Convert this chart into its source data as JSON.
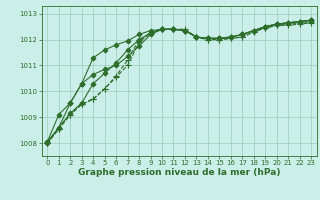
{
  "title": "Graphe pression niveau de la mer (hPa)",
  "bg_color": "#cceee8",
  "grid_color": "#99ccbb",
  "line_color": "#2d6e2d",
  "xlim": [
    -0.5,
    23.5
  ],
  "ylim": [
    1007.5,
    1013.3
  ],
  "yticks": [
    1008,
    1009,
    1010,
    1011,
    1012,
    1013
  ],
  "xticks": [
    0,
    1,
    2,
    3,
    4,
    5,
    6,
    7,
    8,
    9,
    10,
    11,
    12,
    13,
    14,
    15,
    16,
    17,
    18,
    19,
    20,
    21,
    22,
    23
  ],
  "series": [
    {
      "y": [
        1008.0,
        1008.55,
        1009.1,
        1009.5,
        1009.7,
        1010.1,
        1010.55,
        1011.0,
        1011.9,
        1012.25,
        1012.4,
        1012.4,
        1012.4,
        1012.1,
        1012.0,
        1012.0,
        1012.05,
        1012.1,
        1012.3,
        1012.45,
        1012.55,
        1012.55,
        1012.6,
        1012.65
      ],
      "linestyle": "--",
      "marker": "+",
      "markersize": 4,
      "linewidth": 0.8
    },
    {
      "y": [
        1008.0,
        1008.55,
        1009.1,
        1009.5,
        1009.7,
        1010.1,
        1010.6,
        1011.2,
        1012.0,
        1012.25,
        1012.4,
        1012.4,
        1012.35,
        1012.1,
        1012.0,
        1012.0,
        1012.05,
        1012.1,
        1012.3,
        1012.45,
        1012.55,
        1012.6,
        1012.65,
        1012.7
      ],
      "linestyle": "--",
      "marker": "+",
      "markersize": 4,
      "linewidth": 0.8
    },
    {
      "y": [
        1008.0,
        1008.6,
        1009.15,
        1009.55,
        1010.3,
        1010.7,
        1011.1,
        1011.6,
        1012.0,
        1012.25,
        1012.4,
        1012.4,
        1012.35,
        1012.1,
        1012.05,
        1012.05,
        1012.1,
        1012.2,
        1012.35,
        1012.5,
        1012.6,
        1012.65,
        1012.7,
        1012.75
      ],
      "linestyle": "-",
      "marker": "D",
      "markersize": 2.5,
      "linewidth": 0.8
    },
    {
      "y": [
        1008.05,
        1008.6,
        1009.55,
        1010.3,
        1010.65,
        1010.85,
        1011.0,
        1011.35,
        1011.75,
        1012.2,
        1012.4,
        1012.4,
        1012.35,
        1012.1,
        1012.05,
        1012.05,
        1012.1,
        1012.2,
        1012.35,
        1012.5,
        1012.6,
        1012.65,
        1012.7,
        1012.75
      ],
      "linestyle": "-",
      "marker": "D",
      "markersize": 2.5,
      "linewidth": 0.8
    },
    {
      "y": [
        1008.05,
        1009.1,
        1009.55,
        1010.3,
        1011.3,
        1011.6,
        1011.8,
        1011.95,
        1012.2,
        1012.35,
        1012.4,
        1012.4,
        1012.35,
        1012.1,
        1012.05,
        1012.05,
        1012.1,
        1012.2,
        1012.35,
        1012.5,
        1012.6,
        1012.65,
        1012.7,
        1012.75
      ],
      "linestyle": "-",
      "marker": "D",
      "markersize": 2.5,
      "linewidth": 0.8
    }
  ],
  "title_fontsize": 6.0,
  "tick_fontsize": 5.0,
  "xlabel_fontsize": 6.5
}
